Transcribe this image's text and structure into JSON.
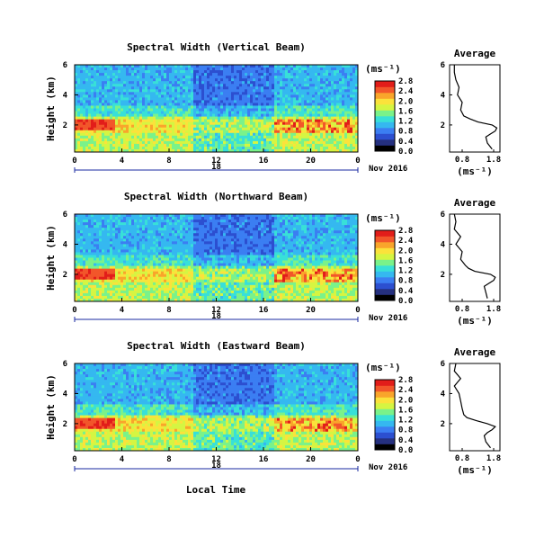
{
  "figure": {
    "date_label": "Nov 2016",
    "xlabel": "Local Time",
    "units_label": "(ms⁻¹)",
    "average_title": "Average",
    "average_xlabel": "(ms⁻¹)",
    "height_label": "Height (km)"
  },
  "colors": {
    "scale": [
      "#000000",
      "#25307f",
      "#2c4fd0",
      "#3b7ef2",
      "#35b8f0",
      "#38e0d8",
      "#7af28a",
      "#d5f542",
      "#fbe23b",
      "#f9a52b",
      "#f2562a",
      "#e21d1a"
    ]
  },
  "chart_data": [
    {
      "type": "heatmap",
      "title": "Spectral Width (Vertical Beam)",
      "ylabel": "Height (km)",
      "xlabel": "Local Time",
      "x_ticks": [
        "0",
        "4",
        "8",
        "12",
        "16",
        "20",
        "0"
      ],
      "x_day_label": "18",
      "x_range_hours": [
        0,
        24
      ],
      "y_ticks": [
        "2",
        "4",
        "6"
      ],
      "y_range_km": [
        0.2,
        6.0
      ],
      "colorbar": {
        "unit": "(ms⁻¹)",
        "ticks": [
          "0.0",
          "0.4",
          "0.8",
          "1.2",
          "1.6",
          "2.0",
          "2.4",
          "2.8"
        ],
        "range": [
          0.0,
          2.8
        ]
      },
      "date": "Nov 2016",
      "strong_layer_km": [
        1.5,
        2.3
      ],
      "profile": {
        "title": "Average",
        "xlabel": "(ms⁻¹)",
        "x_ticks": [
          "0.8",
          "1.8"
        ],
        "x_range": [
          0.4,
          2.0
        ],
        "y_ticks": [
          "2",
          "4",
          "6"
        ],
        "height_km": [
          0.4,
          0.8,
          1.2,
          1.4,
          1.6,
          1.8,
          2.0,
          2.2,
          2.4,
          2.6,
          3.0,
          3.5,
          4.0,
          4.5,
          5.0,
          5.5,
          6.0
        ],
        "width_ms": [
          1.75,
          1.6,
          1.55,
          1.7,
          1.85,
          1.9,
          1.75,
          1.3,
          1.05,
          0.85,
          0.75,
          0.8,
          0.65,
          0.7,
          0.6,
          0.55,
          0.55
        ]
      }
    },
    {
      "type": "heatmap",
      "title": "Spectral Width (Northward Beam)",
      "ylabel": "Height (km)",
      "xlabel": "Local Time",
      "x_ticks": [
        "0",
        "4",
        "8",
        "12",
        "16",
        "20",
        "0"
      ],
      "x_day_label": "18",
      "x_range_hours": [
        0,
        24
      ],
      "y_ticks": [
        "2",
        "4",
        "6"
      ],
      "y_range_km": [
        0.2,
        6.0
      ],
      "colorbar": {
        "unit": "(ms⁻¹)",
        "ticks": [
          "0.0",
          "0.4",
          "0.8",
          "1.2",
          "1.6",
          "2.0",
          "2.4",
          "2.8"
        ],
        "range": [
          0.0,
          2.8
        ]
      },
      "date": "Nov 2016",
      "strong_layer_km": [
        1.5,
        2.3
      ],
      "profile": {
        "title": "Average",
        "xlabel": "(ms⁻¹)",
        "x_ticks": [
          "0.8",
          "1.8"
        ],
        "x_range": [
          0.4,
          2.0
        ],
        "y_ticks": [
          "2",
          "4",
          "6"
        ],
        "height_km": [
          0.4,
          0.8,
          1.2,
          1.4,
          1.6,
          1.8,
          2.0,
          2.2,
          2.4,
          2.6,
          3.0,
          3.5,
          4.0,
          4.5,
          5.0,
          5.5,
          6.0
        ],
        "width_ms": [
          1.6,
          1.55,
          1.5,
          1.65,
          1.8,
          1.85,
          1.7,
          1.2,
          1.0,
          0.9,
          0.75,
          0.8,
          0.6,
          0.75,
          0.55,
          0.6,
          0.55
        ]
      }
    },
    {
      "type": "heatmap",
      "title": "Spectral Width (Eastward Beam)",
      "ylabel": "Height (km)",
      "xlabel": "Local Time",
      "x_ticks": [
        "0",
        "4",
        "8",
        "12",
        "16",
        "20",
        "0"
      ],
      "x_day_label": "18",
      "x_range_hours": [
        0,
        24
      ],
      "y_ticks": [
        "2",
        "4",
        "6"
      ],
      "y_range_km": [
        0.2,
        6.0
      ],
      "colorbar": {
        "unit": "(ms⁻¹)",
        "ticks": [
          "0.0",
          "0.4",
          "0.8",
          "1.2",
          "1.6",
          "2.0",
          "2.4",
          "2.8"
        ],
        "range": [
          0.0,
          2.8
        ]
      },
      "date": "Nov 2016",
      "strong_layer_km": [
        1.5,
        2.3
      ],
      "profile": {
        "title": "Average",
        "xlabel": "(ms⁻¹)",
        "x_ticks": [
          "0.8",
          "1.8"
        ],
        "x_range": [
          0.4,
          2.0
        ],
        "y_ticks": [
          "2",
          "4",
          "6"
        ],
        "height_km": [
          0.4,
          0.8,
          1.2,
          1.4,
          1.6,
          1.8,
          2.0,
          2.2,
          2.4,
          2.6,
          3.0,
          3.5,
          4.0,
          4.5,
          5.0,
          5.5,
          6.0
        ],
        "width_ms": [
          1.7,
          1.55,
          1.5,
          1.6,
          1.75,
          1.85,
          1.6,
          1.25,
          0.95,
          0.85,
          0.8,
          0.75,
          0.7,
          0.55,
          0.75,
          0.55,
          0.6
        ]
      }
    }
  ]
}
